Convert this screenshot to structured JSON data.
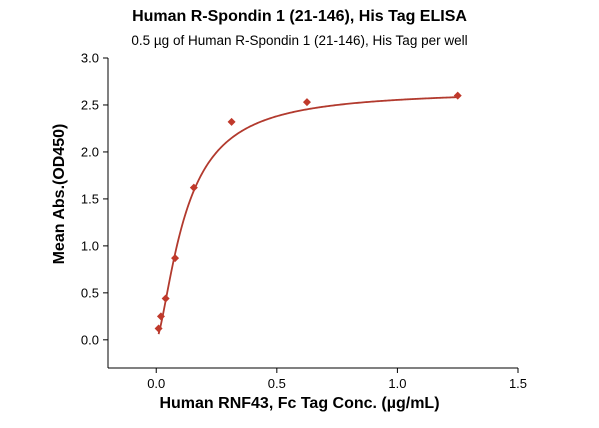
{
  "chart_data": {
    "type": "scatter",
    "title": "Human R-Spondin 1 (21-146), His Tag ELISA",
    "subtitle": "0.5 µg of Human R-Spondin 1 (21-146), His Tag per well",
    "xlabel": "Human RNF43, Fc Tag Conc. (µg/mL)",
    "ylabel": "Mean Abs.(OD450)",
    "xlim": [
      -0.2,
      1.5
    ],
    "ylim": [
      -0.3,
      3.0
    ],
    "x_ticks": [
      0.0,
      0.5,
      1.0,
      1.5
    ],
    "x_tick_labels": [
      "0.0",
      "0.5",
      "1.0",
      "1.5"
    ],
    "y_ticks": [
      0.0,
      0.5,
      1.0,
      1.5,
      2.0,
      2.5,
      3.0
    ],
    "y_tick_labels": [
      "0.0",
      "0.5",
      "1.0",
      "1.5",
      "2.0",
      "2.5",
      "3.0"
    ],
    "grid": false,
    "legend": "none",
    "series": [
      {
        "points": [
          {
            "x": 0.0098,
            "y": 0.12
          },
          {
            "x": 0.0195,
            "y": 0.25
          },
          {
            "x": 0.039,
            "y": 0.44
          },
          {
            "x": 0.078,
            "y": 0.87
          },
          {
            "x": 0.156,
            "y": 1.62
          },
          {
            "x": 0.3125,
            "y": 2.32
          },
          {
            "x": 0.625,
            "y": 2.53
          },
          {
            "x": 1.25,
            "y": 2.6
          }
        ],
        "color": "#c0392b",
        "marker": "diamond"
      }
    ],
    "fit_curve": {
      "color": "#b23a2e",
      "ymax": 2.66,
      "half_max": 0.12,
      "hill": 1.5
    }
  }
}
